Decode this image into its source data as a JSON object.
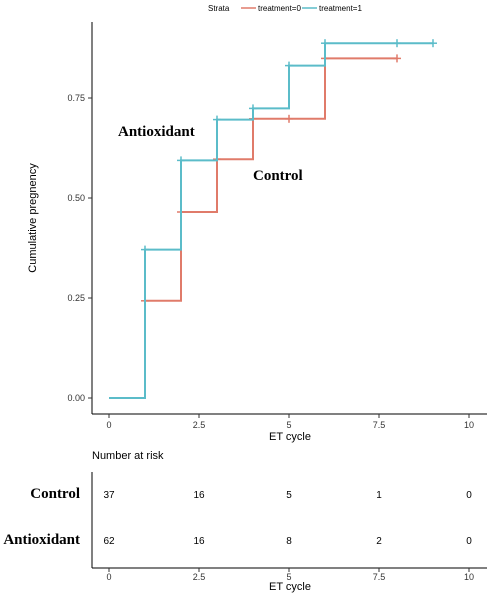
{
  "chart_data": [
    {
      "type": "line",
      "step": true,
      "legend": {
        "title": "Strata",
        "position": "top",
        "entries": [
          "treatment=0",
          "treatment=1"
        ]
      },
      "xlabel": "ET cycle",
      "ylabel": "Cumulative pregnency",
      "xlim": [
        0,
        10
      ],
      "ylim": [
        0,
        0.88
      ],
      "xticks": [
        "0",
        "2.5",
        "5",
        "7.5",
        "10"
      ],
      "yticks": [
        "0.00",
        "0.25",
        "0.50",
        "0.75"
      ],
      "grid": false,
      "series": [
        {
          "name": "treatment=0",
          "color": "#E07B6A",
          "x": [
            0,
            1,
            2,
            3,
            4,
            6,
            8
          ],
          "y": [
            0,
            0.243,
            0.465,
            0.597,
            0.698,
            0.849,
            0.849
          ],
          "censor_x": [
            1,
            2,
            3,
            4,
            5,
            6,
            8
          ],
          "censor_y": [
            0.243,
            0.465,
            0.597,
            0.698,
            0.698,
            0.849,
            0.849
          ]
        },
        {
          "name": "treatment=1",
          "color": "#5BBCC9",
          "x": [
            0,
            1,
            2,
            3,
            4,
            5,
            6,
            9
          ],
          "y": [
            0,
            0.371,
            0.594,
            0.696,
            0.724,
            0.831,
            0.887,
            0.887
          ],
          "censor_x": [
            1,
            2,
            3,
            4,
            5,
            6,
            8,
            9
          ],
          "censor_y": [
            0.371,
            0.594,
            0.696,
            0.724,
            0.831,
            0.887,
            0.887,
            0.887
          ]
        }
      ],
      "annotations": [
        {
          "text": "Antioxidant",
          "x": 0.25,
          "y": 0.655
        },
        {
          "text": "Control",
          "x": 4.0,
          "y": 0.545
        }
      ]
    },
    {
      "type": "table",
      "title": "Number at risk",
      "xlabel": "ET cycle",
      "xlim": [
        0,
        10
      ],
      "xticks": [
        "0",
        "2.5",
        "5",
        "7.5",
        "10"
      ],
      "columns_x": [
        0,
        2.5,
        5,
        7.5,
        10
      ],
      "rows": [
        {
          "label": "Control",
          "values": [
            "37",
            "16",
            "5",
            "1",
            "0"
          ]
        },
        {
          "label": "Antioxidant",
          "values": [
            "62",
            "16",
            "8",
            "2",
            "0"
          ]
        }
      ]
    }
  ]
}
